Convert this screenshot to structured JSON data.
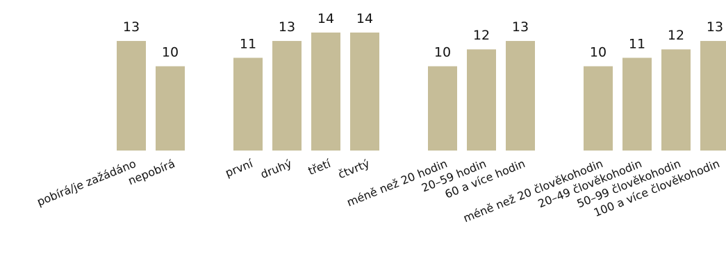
{
  "chart_data": {
    "type": "bar",
    "colors": {
      "bar": "#c6bd98"
    },
    "ylim": [
      0,
      16
    ],
    "groups": [
      {
        "categories": [
          "pobírá/je zažádáno",
          "nepobírá"
        ],
        "values": [
          13,
          10
        ]
      },
      {
        "categories": [
          "první",
          "druhý",
          "třetí",
          "čtvrtý"
        ],
        "values": [
          11,
          13,
          14,
          14
        ]
      },
      {
        "categories": [
          "méně než 20 hodin",
          "20–59 hodin",
          "60 a více hodin"
        ],
        "values": [
          10,
          12,
          13
        ]
      },
      {
        "categories": [
          "méně než 20 člověkohodin",
          "20–49 člověkohodin",
          "50–99 člověkohodin",
          "100 a více člověkohodin"
        ],
        "values": [
          10,
          11,
          12,
          13
        ]
      }
    ]
  }
}
